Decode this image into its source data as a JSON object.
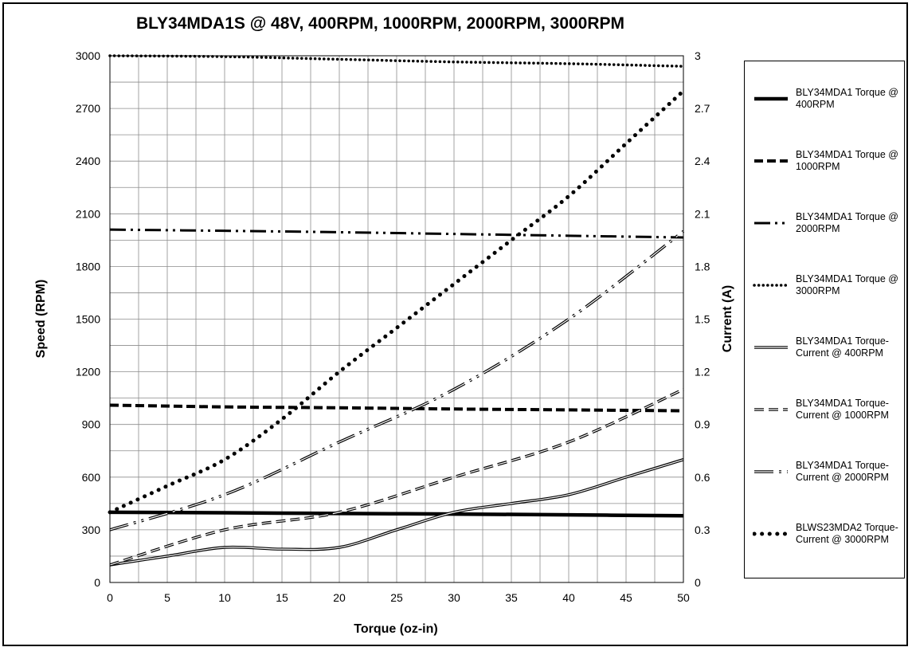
{
  "chart_data": {
    "type": "line",
    "title": "BLY34MDA1S @ 48V, 400RPM, 1000RPM, 2000RPM, 3000RPM",
    "xlabel": "Torque (oz-in)",
    "ylabel": "Speed (RPM)",
    "y2label": "Current (A)",
    "xlim": [
      0,
      50
    ],
    "ylim": [
      0,
      3000
    ],
    "y2lim": [
      0,
      3
    ],
    "xticks": [
      "0",
      "5",
      "10",
      "15",
      "20",
      "25",
      "30",
      "35",
      "40",
      "45",
      "50"
    ],
    "yticks": [
      "0",
      "300",
      "600",
      "900",
      "1200",
      "1500",
      "1800",
      "2100",
      "2400",
      "2700",
      "3000"
    ],
    "y2ticks": [
      "0",
      "0.3",
      "0.6",
      "0.9",
      "1.2",
      "1.5",
      "1.8",
      "2.1",
      "2.4",
      "2.7",
      "3"
    ],
    "grid": true,
    "legend_position": "right",
    "series": [
      {
        "name": "BLY34MDA1 Torque @ 400RPM",
        "axis": "left",
        "style": "solid-thick",
        "x": [
          0,
          10,
          20,
          30,
          40,
          50
        ],
        "y": [
          400,
          397,
          393,
          390,
          385,
          380
        ]
      },
      {
        "name": "BLY34MDA1 Torque @ 1000RPM",
        "axis": "left",
        "style": "dashed-thick",
        "x": [
          0,
          10,
          20,
          30,
          40,
          50
        ],
        "y": [
          1010,
          1000,
          995,
          988,
          983,
          978
        ]
      },
      {
        "name": "BLY34MDA1 Torque @ 2000RPM",
        "axis": "left",
        "style": "dashdotdot",
        "x": [
          0,
          10,
          20,
          30,
          40,
          50
        ],
        "y": [
          2010,
          2003,
          1995,
          1985,
          1975,
          1965
        ]
      },
      {
        "name": "BLY34MDA1 Torque @ 3000RPM",
        "axis": "left",
        "style": "dotted",
        "x": [
          0,
          10,
          20,
          30,
          40,
          50
        ],
        "y": [
          3000,
          2995,
          2980,
          2965,
          2955,
          2940
        ]
      },
      {
        "name": "BLY34MDA1 Torque-Current @ 400RPM",
        "axis": "right",
        "style": "double",
        "x": [
          0,
          5,
          10,
          15,
          20,
          25,
          30,
          35,
          40,
          45,
          50
        ],
        "y": [
          0.1,
          0.15,
          0.2,
          0.19,
          0.2,
          0.3,
          0.4,
          0.45,
          0.5,
          0.6,
          0.7
        ]
      },
      {
        "name": "BLY34MDA1 Torque-Current @ 1000RPM",
        "axis": "right",
        "style": "double-dashed",
        "x": [
          0,
          10,
          20,
          30,
          40,
          50
        ],
        "y": [
          0.1,
          0.3,
          0.4,
          0.6,
          0.8,
          1.1
        ]
      },
      {
        "name": "BLY34MDA1 Torque-Current @ 2000RPM",
        "axis": "right",
        "style": "double-dashdotdot",
        "x": [
          0,
          10,
          20,
          30,
          40,
          50
        ],
        "y": [
          0.3,
          0.5,
          0.8,
          1.1,
          1.5,
          2.0
        ]
      },
      {
        "name": "BLWS23MDA2 Torque-Current @ 3000RPM",
        "axis": "right",
        "style": "big-dots",
        "x": [
          0,
          5,
          10,
          15,
          20,
          25,
          30,
          35,
          40,
          45,
          50
        ],
        "y": [
          0.4,
          0.55,
          0.7,
          0.93,
          1.2,
          1.45,
          1.7,
          1.95,
          2.2,
          2.5,
          2.8
        ]
      }
    ]
  }
}
